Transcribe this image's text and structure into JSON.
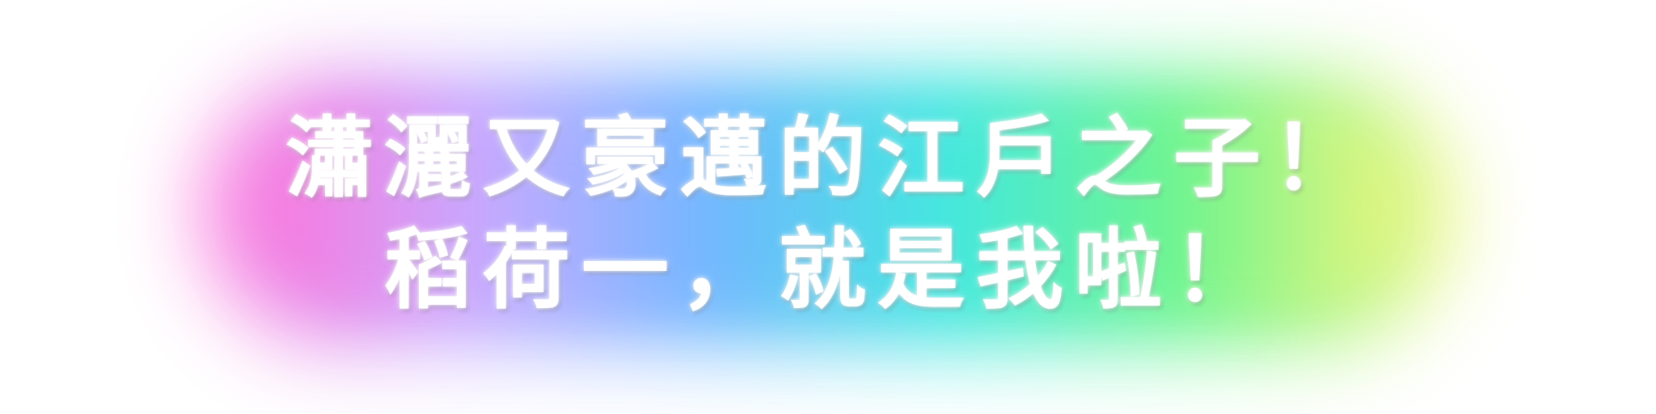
{
  "caption": {
    "line1": "瀟灑又豪邁的江戶之子！",
    "line2": "稻荷一，就是我啦！"
  },
  "colors": {
    "glow_gradient": [
      "#ff6fd8",
      "#c9a8ff",
      "#6fb6ff",
      "#3fe8e0",
      "#6cf58a",
      "#f5f57a"
    ],
    "text": "#ffffff",
    "background": "#ffffff"
  }
}
